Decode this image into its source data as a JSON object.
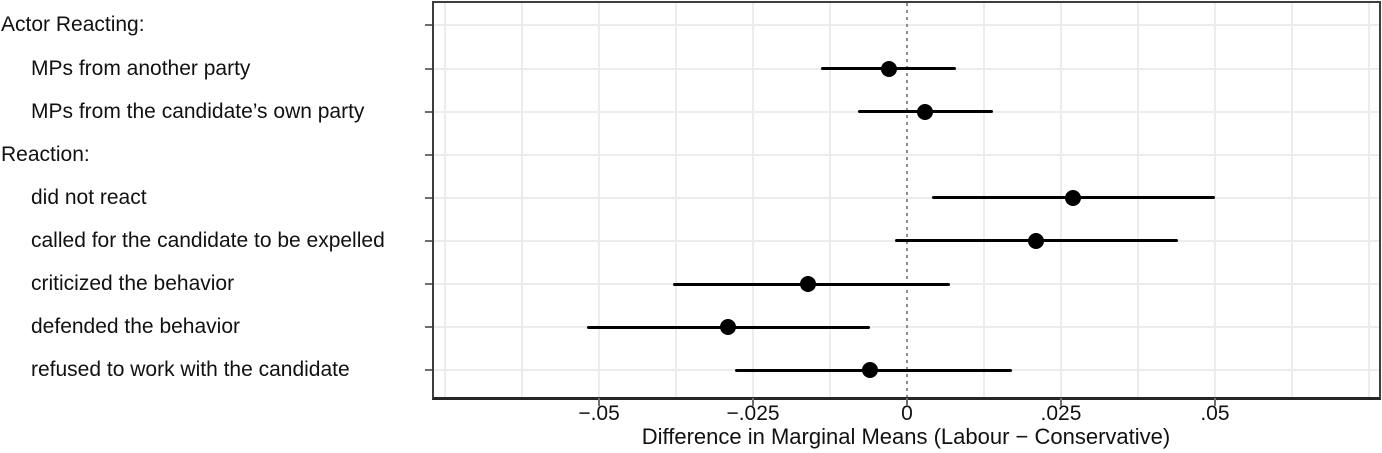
{
  "chart_data": {
    "type": "scatter",
    "subtype": "dot-and-whisker coefficient plot",
    "title": "",
    "xlabel": "Difference in Marginal Means (Labour − Conservative)",
    "ylabel": "",
    "xlim": [
      -0.0768,
      0.0768
    ],
    "x_ticks": [
      {
        "value": -0.05,
        "label": "−.05"
      },
      {
        "value": -0.025,
        "label": "−.025"
      },
      {
        "value": 0,
        "label": "0"
      },
      {
        "value": 0.025,
        "label": ".025"
      },
      {
        "value": 0.05,
        "label": ".05"
      }
    ],
    "minor_grid_step": 0.0125,
    "zero_reference_line": 0,
    "grid": "minor vertical lines every 0.0125; horizontal line at each row",
    "legend": "none",
    "rows": [
      {
        "label": "Actor Reacting:",
        "header": true
      },
      {
        "label": "MPs from another party",
        "header": false,
        "estimate": -0.003,
        "ci_low": -0.014,
        "ci_high": 0.008
      },
      {
        "label": "MPs from the candidate’s own party",
        "header": false,
        "estimate": 0.003,
        "ci_low": -0.008,
        "ci_high": 0.014
      },
      {
        "label": "Reaction:",
        "header": true
      },
      {
        "label": "did not react",
        "header": false,
        "estimate": 0.027,
        "ci_low": 0.004,
        "ci_high": 0.05
      },
      {
        "label": "called for the candidate to be expelled",
        "header": false,
        "estimate": 0.021,
        "ci_low": -0.002,
        "ci_high": 0.044
      },
      {
        "label": "criticized the behavior",
        "header": false,
        "estimate": -0.016,
        "ci_low": -0.038,
        "ci_high": 0.007
      },
      {
        "label": "defended the behavior",
        "header": false,
        "estimate": -0.029,
        "ci_low": -0.052,
        "ci_high": -0.006
      },
      {
        "label": "refused to work with the candidate",
        "header": false,
        "estimate": -0.006,
        "ci_low": -0.028,
        "ci_high": 0.017
      }
    ],
    "colors": {
      "point": "#000000",
      "ci_line": "#000000",
      "zero_line": "#8f8f8f",
      "grid": "#ececec",
      "panel_border": "#3d3d3d",
      "axis_line": "#262626",
      "text": "#111111"
    }
  }
}
